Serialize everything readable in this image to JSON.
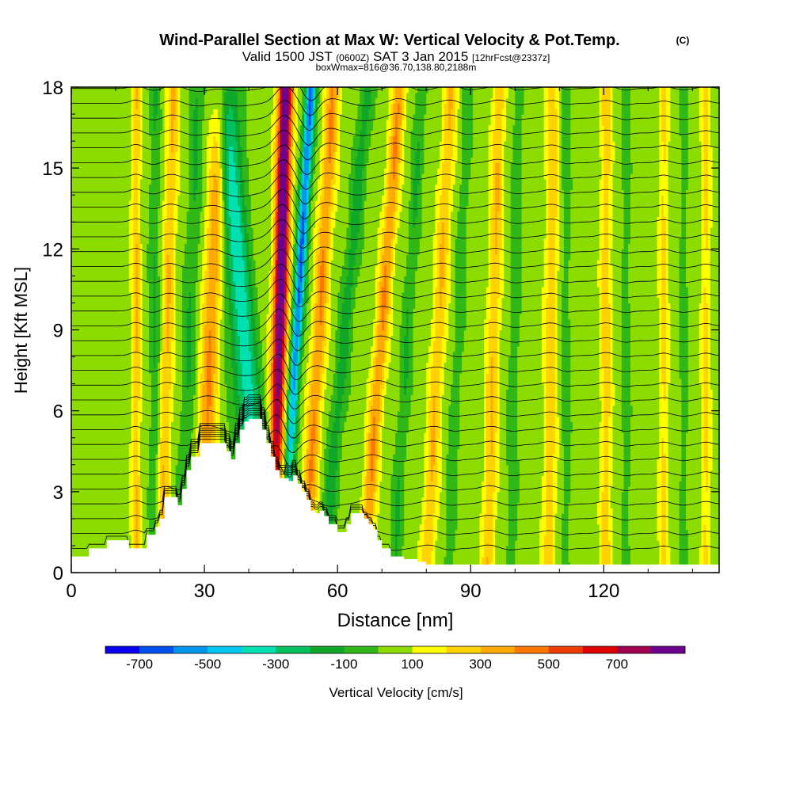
{
  "chart_data": {
    "type": "heatmap",
    "title": "Wind-Parallel Section at Max W: Vertical Velocity & Pot.Temp.",
    "title_mark": "(C)",
    "subtitle_main_a": "Valid 1500 JST",
    "subtitle_small_a": "(0600Z)",
    "subtitle_main_b": "SAT 3 Jan 2015",
    "subtitle_small_b": "[12hrFcst@2337z]",
    "subtitle2": "boxWmax=816@36.70,138.80,2188m",
    "xlabel": "Distance [nm]",
    "ylabel": "Height [Kft MSL]",
    "xlim": [
      0,
      146
    ],
    "ylim": [
      0,
      18
    ],
    "x_ticks": [
      0,
      30,
      60,
      90,
      120
    ],
    "x_minor_ticks": [
      10,
      20,
      40,
      50,
      70,
      80,
      100,
      110,
      130,
      140
    ],
    "y_ticks": [
      0,
      3,
      6,
      9,
      12,
      15,
      18
    ],
    "grid": false,
    "legend": {
      "placement": "bottom",
      "title": "Vertical Velocity [cm/s]",
      "tick_labels": [
        "-700",
        "-500",
        "-300",
        "-100",
        "100",
        "300",
        "500",
        "700"
      ],
      "bins": [
        {
          "low": -800,
          "high": -700,
          "color": "#0a00f0"
        },
        {
          "low": -700,
          "high": -600,
          "color": "#0050f0"
        },
        {
          "low": -600,
          "high": -500,
          "color": "#0096f0"
        },
        {
          "low": -500,
          "high": -400,
          "color": "#00c8f0"
        },
        {
          "low": -400,
          "high": -300,
          "color": "#00e0b0"
        },
        {
          "low": -300,
          "high": -200,
          "color": "#00c060"
        },
        {
          "low": -200,
          "high": -100,
          "color": "#10a828"
        },
        {
          "low": -100,
          "high": 0,
          "color": "#30b818"
        },
        {
          "low": 0,
          "high": 100,
          "color": "#8cdc00"
        },
        {
          "low": 100,
          "high": 200,
          "color": "#ffff00"
        },
        {
          "low": 200,
          "high": 300,
          "color": "#ffd200"
        },
        {
          "low": 300,
          "high": 400,
          "color": "#ffaa00"
        },
        {
          "low": 400,
          "high": 500,
          "color": "#ff7800"
        },
        {
          "low": 500,
          "high": 600,
          "color": "#f03c00"
        },
        {
          "low": 600,
          "high": 700,
          "color": "#e00000"
        },
        {
          "low": 700,
          "high": 800,
          "color": "#a00050"
        },
        {
          "low": 800,
          "high": 900,
          "color": "#6e0090"
        }
      ]
    },
    "terrain_kft": [
      [
        0,
        0.6
      ],
      [
        3,
        0.6
      ],
      [
        4,
        0.9
      ],
      [
        7,
        0.9
      ],
      [
        8,
        1.2
      ],
      [
        12,
        1.2
      ],
      [
        13,
        0.9
      ],
      [
        16,
        0.9
      ],
      [
        17,
        1.4
      ],
      [
        19,
        1.7
      ],
      [
        20,
        2.0
      ],
      [
        21,
        2.8
      ],
      [
        23,
        2.8
      ],
      [
        24,
        2.5
      ],
      [
        25,
        3.1
      ],
      [
        26,
        3.8
      ],
      [
        27,
        4.3
      ],
      [
        29,
        4.8
      ],
      [
        31,
        4.8
      ],
      [
        33,
        4.8
      ],
      [
        35,
        4.5
      ],
      [
        36,
        4.2
      ],
      [
        37,
        4.8
      ],
      [
        38,
        5.3
      ],
      [
        39,
        5.6
      ],
      [
        40,
        5.7
      ],
      [
        42,
        5.7
      ],
      [
        43,
        5.3
      ],
      [
        44,
        4.8
      ],
      [
        45,
        4.3
      ],
      [
        46,
        3.8
      ],
      [
        47,
        3.5
      ],
      [
        48,
        3.5
      ],
      [
        49,
        3.4
      ],
      [
        50,
        3.6
      ],
      [
        51,
        3.3
      ],
      [
        52,
        3.0
      ],
      [
        53,
        2.7
      ],
      [
        54,
        2.3
      ],
      [
        55,
        2.2
      ],
      [
        56,
        2.3
      ],
      [
        57,
        2.1
      ],
      [
        58,
        1.8
      ],
      [
        60,
        1.5
      ],
      [
        61,
        1.5
      ],
      [
        62,
        1.8
      ],
      [
        63,
        2.2
      ],
      [
        65,
        2.2
      ],
      [
        66,
        2.0
      ],
      [
        67,
        1.8
      ],
      [
        68,
        1.6
      ],
      [
        69,
        1.2
      ],
      [
        70,
        0.9
      ],
      [
        71,
        0.9
      ],
      [
        72,
        0.6
      ],
      [
        73,
        0.6
      ],
      [
        75,
        0.5
      ],
      [
        78,
        0.4
      ],
      [
        80,
        0.3
      ],
      [
        146,
        0.3
      ]
    ],
    "velocity_bands": [
      {
        "x": 14.6,
        "w": 1.0,
        "v": 250,
        "tilt": 0.0
      },
      {
        "x": 18.8,
        "w": 1.2,
        "v": -150,
        "tilt": 0.0
      },
      {
        "x": 21.5,
        "w": 1.4,
        "v": 250,
        "tilt": 0.15
      },
      {
        "x": 26.5,
        "w": 1.6,
        "v": -150,
        "tilt": 0.2
      },
      {
        "x": 31.2,
        "w": 2.0,
        "v": 350,
        "tilt": 0.25
      },
      {
        "x": 39.0,
        "w": 3.0,
        "v": -400,
        "tilt": -0.45
      },
      {
        "x": 46.8,
        "w": 1.6,
        "v": 750,
        "tilt": 0.15
      },
      {
        "x": 50.5,
        "w": 1.2,
        "v": -550,
        "tilt": 0.35
      },
      {
        "x": 55.5,
        "w": 1.6,
        "v": 350,
        "tilt": 0.35
      },
      {
        "x": 61.2,
        "w": 1.6,
        "v": -200,
        "tilt": 0.55
      },
      {
        "x": 69.5,
        "w": 1.5,
        "v": 350,
        "tilt": 0.45
      },
      {
        "x": 75.5,
        "w": 1.3,
        "v": -150,
        "tilt": 0.35
      },
      {
        "x": 82.5,
        "w": 1.5,
        "v": 250,
        "tilt": 0.3
      },
      {
        "x": 87.0,
        "w": 1.2,
        "v": -120,
        "tilt": 0.25
      },
      {
        "x": 95.0,
        "w": 1.4,
        "v": 250,
        "tilt": 0.15
      },
      {
        "x": 99.8,
        "w": 1.2,
        "v": -120,
        "tilt": 0.1
      },
      {
        "x": 108.0,
        "w": 1.4,
        "v": 220,
        "tilt": 0.05
      },
      {
        "x": 111.5,
        "w": 1.0,
        "v": -120,
        "tilt": 0.0
      },
      {
        "x": 120.5,
        "w": 1.2,
        "v": 220,
        "tilt": 0.0
      },
      {
        "x": 125.0,
        "w": 1.0,
        "v": -120,
        "tilt": 0.0
      },
      {
        "x": 133.5,
        "w": 1.0,
        "v": 180,
        "tilt": 0.0
      },
      {
        "x": 138.0,
        "w": 1.0,
        "v": -100,
        "tilt": 0.0
      },
      {
        "x": 143.0,
        "w": 1.0,
        "v": 180,
        "tilt": 0.0
      }
    ]
  }
}
